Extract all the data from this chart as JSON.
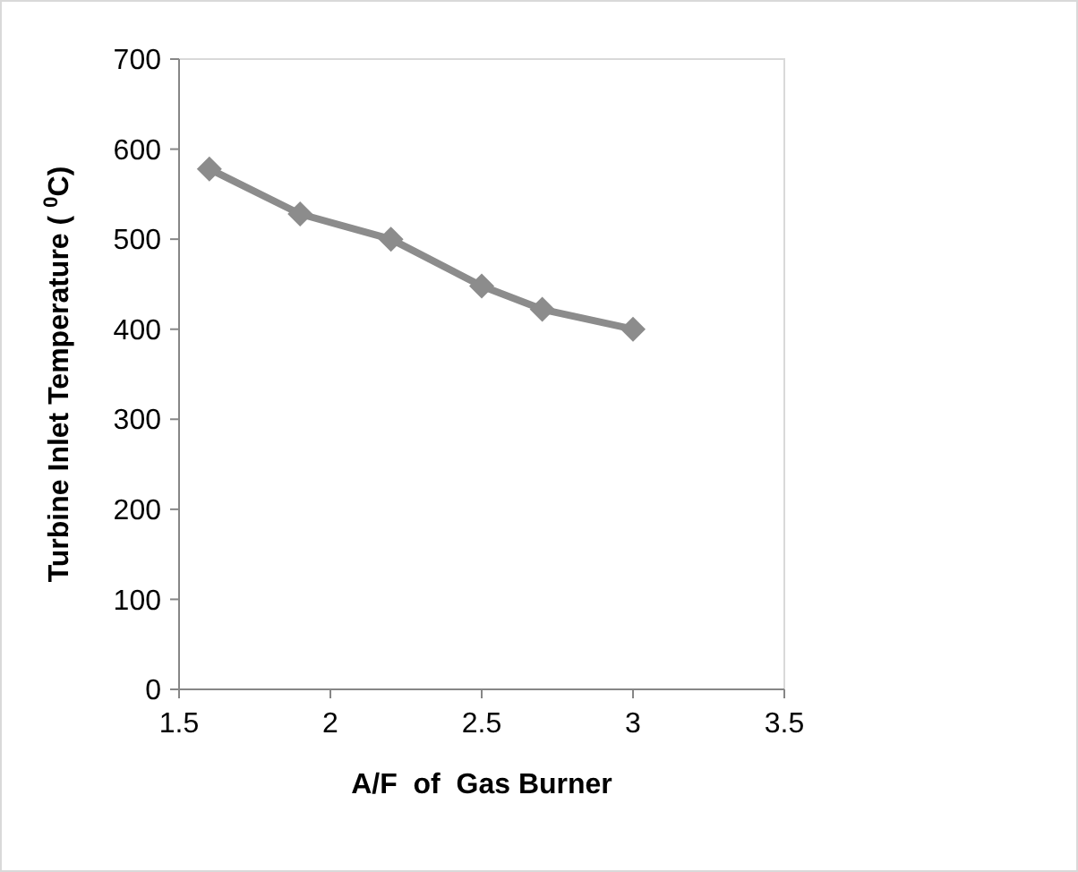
{
  "chart_data": {
    "type": "line",
    "xlabel": "A/F  of  Gas Burner",
    "ylabel": "Turbine Inlet Temperature ( $^{0}$C)",
    "x": [
      1.6,
      1.9,
      2.2,
      2.5,
      2.7,
      3.0
    ],
    "series": [
      {
        "color": "#8c8c8c",
        "values": [
          578,
          528,
          500,
          448,
          422,
          400
        ]
      }
    ],
    "xlim": [
      1.5,
      3.5
    ],
    "xticks": [
      1.5,
      2,
      2.5,
      3,
      3.5
    ],
    "ylim": [
      0,
      700
    ],
    "yticks": [
      0,
      100,
      200,
      300,
      400,
      500,
      600,
      700
    ],
    "marker": "diamond",
    "line_style": "solid",
    "grid": false
  }
}
